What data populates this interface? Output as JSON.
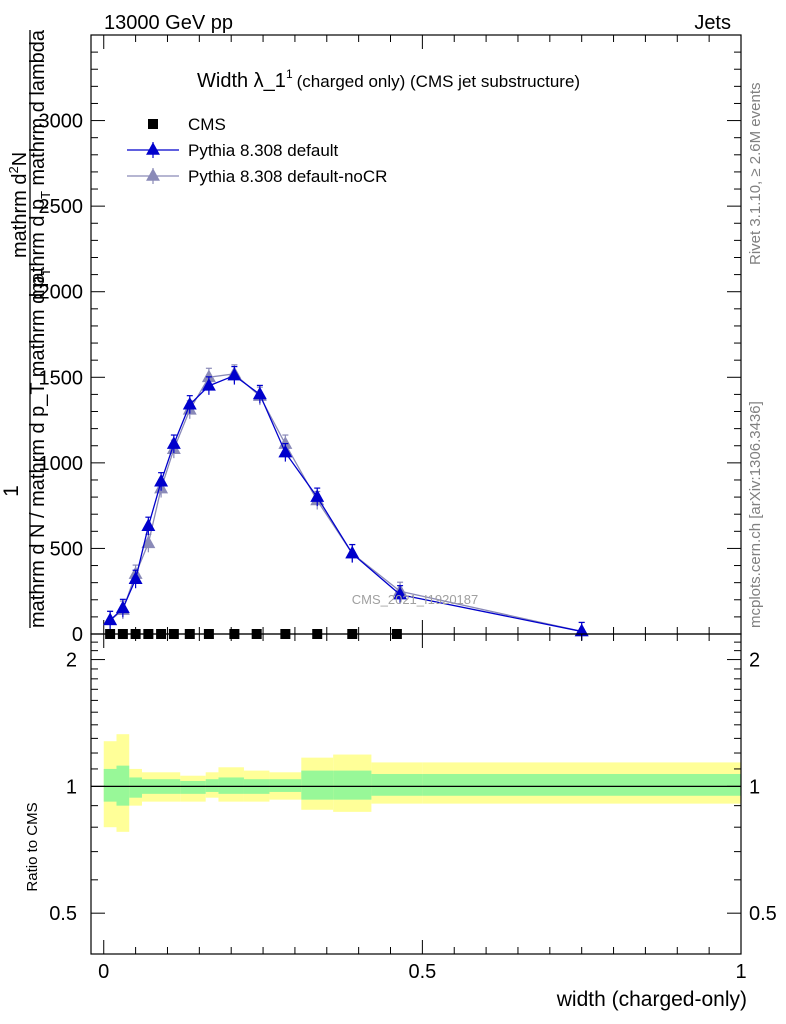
{
  "header": {
    "left": "13000 GeV pp",
    "right": "Jets"
  },
  "side": {
    "rivet": "Rivet 3.1.10, ≥ 2.6M events",
    "mcplots": "mcplots.cern.ch [arXiv:1306.3436]"
  },
  "watermark": "CMS_2021_I1920187",
  "plot_title": {
    "main": "Width λ_1",
    "sup": "1",
    "rest": "(charged only) (CMS jet substructure)"
  },
  "ylabel_parts": {
    "one": "1",
    "den": "mathrm d N / mathrm d p_T mathrm d p",
    "den_sub": "T",
    "num_a": "mathrm d",
    "num_sup": "2",
    "num_b": "N",
    "num_c": "mathrm d p",
    "num_c_sub": "T",
    "num_d": "mathrm d lambda"
  },
  "legend": [
    {
      "label": "CMS",
      "color": "#000000",
      "marker": "square"
    },
    {
      "label": "Pythia 8.308 default",
      "color": "#0000cc",
      "marker": "triangle"
    },
    {
      "label": "Pythia 8.308 default-noCR",
      "color": "#8a8ab8",
      "marker": "triangle"
    }
  ],
  "colors": {
    "band_inner": "#98f898",
    "band_outer": "#ffff98",
    "default": "#0000cc",
    "nocr": "#8a8ab8"
  },
  "chart_data": [
    {
      "type": "line",
      "xlim": [
        -0.02,
        1.0
      ],
      "ylim": [
        0,
        3500
      ],
      "yticks": [
        0,
        500,
        1000,
        1500,
        2000,
        2500,
        3000
      ],
      "ytick_labels": [
        "0",
        "500",
        "1000",
        "1500",
        "2000",
        "2500",
        "3000"
      ],
      "series": [
        {
          "name": "CMS",
          "x": [
            0.01,
            0.03,
            0.05,
            0.07,
            0.09,
            0.11,
            0.135,
            0.165,
            0.205,
            0.24,
            0.285,
            0.335,
            0.39,
            0.46
          ],
          "values": [
            0,
            0,
            0,
            0,
            0,
            0,
            0,
            0,
            0,
            0,
            0,
            0,
            0,
            0
          ]
        },
        {
          "name": "Pythia 8.308 default",
          "x": [
            0.01,
            0.03,
            0.05,
            0.07,
            0.09,
            0.11,
            0.135,
            0.165,
            0.205,
            0.245,
            0.285,
            0.335,
            0.39,
            0.465,
            0.75
          ],
          "values": [
            80,
            150,
            320,
            630,
            890,
            1110,
            1340,
            1450,
            1510,
            1400,
            1060,
            800,
            470,
            230,
            15
          ]
        },
        {
          "name": "Pythia 8.308 default-noCR",
          "x": [
            0.01,
            0.03,
            0.05,
            0.07,
            0.09,
            0.11,
            0.135,
            0.165,
            0.205,
            0.245,
            0.285,
            0.335,
            0.39,
            0.465,
            0.75
          ],
          "values": [
            80,
            140,
            350,
            530,
            850,
            1080,
            1310,
            1500,
            1520,
            1390,
            1110,
            780,
            470,
            250,
            15
          ]
        }
      ]
    },
    {
      "type": "area",
      "ylabel": "Ratio to CMS",
      "xlabel": "width (charged-only)",
      "xlim": [
        -0.02,
        1.0
      ],
      "ylim": [
        0.4,
        2.3
      ],
      "log_y": true,
      "xticks": [
        0,
        0.5,
        1
      ],
      "xtick_labels": [
        "0",
        "0.5",
        "1"
      ],
      "yticks": [
        0.5,
        1,
        2
      ],
      "ytick_labels": [
        "0.5",
        "1",
        "2"
      ],
      "bins": [
        0,
        0.02,
        0.04,
        0.06,
        0.12,
        0.16,
        0.18,
        0.22,
        0.26,
        0.31,
        0.36,
        0.42,
        0.5,
        1.0
      ],
      "band_inner_low": [
        0.92,
        0.9,
        0.94,
        0.96,
        0.96,
        0.97,
        0.96,
        0.96,
        0.97,
        0.93,
        0.93,
        0.95,
        0.95
      ],
      "band_inner_high": [
        1.1,
        1.12,
        1.05,
        1.04,
        1.03,
        1.04,
        1.05,
        1.04,
        1.04,
        1.09,
        1.09,
        1.07,
        1.07
      ],
      "band_outer_low": [
        0.8,
        0.78,
        0.9,
        0.92,
        0.92,
        0.94,
        0.92,
        0.92,
        0.93,
        0.88,
        0.87,
        0.91,
        0.91
      ],
      "band_outer_high": [
        1.28,
        1.33,
        1.1,
        1.08,
        1.06,
        1.08,
        1.11,
        1.09,
        1.08,
        1.17,
        1.19,
        1.14,
        1.14
      ],
      "reference_line": 1
    }
  ]
}
